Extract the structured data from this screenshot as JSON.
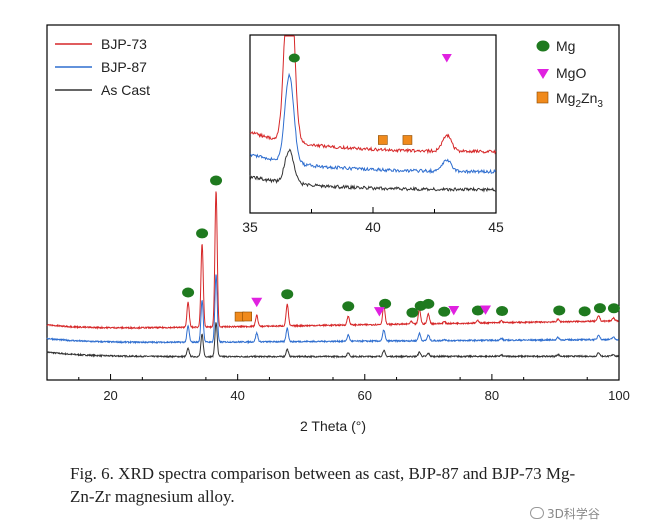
{
  "caption": {
    "line1": "Fig. 6. XRD spectra comparison between as cast, BJP-87 and BJP-73 Mg-",
    "line2": "Zn-Zr magnesium alloy."
  },
  "watermark": "3D科学谷",
  "colors": {
    "bjp73": "#d62728",
    "bjp87": "#2f6ecf",
    "ascast": "#333333",
    "mg_marker": "#1f7a1f",
    "mgo_marker": "#e021e0",
    "mg2zn3_marker": "#f08a1c"
  },
  "chart_data": {
    "type": "line",
    "xlabel": "2 Theta (°)",
    "ylabel": "",
    "xlim": [
      10,
      100
    ],
    "x_ticks": [
      20,
      40,
      60,
      80,
      100
    ],
    "legend": {
      "placement": "top-left",
      "entries": [
        "BJP-73",
        "BJP-87",
        "As Cast"
      ]
    },
    "series": [
      {
        "name": "BJP-73",
        "color": "#d62728",
        "baseline_at_10": 6.2,
        "baseline_at_100": 7.6,
        "peaks": [
          [
            32.2,
            4.0
          ],
          [
            34.4,
            13.5
          ],
          [
            36.6,
            22.0
          ],
          [
            43.0,
            1.8
          ],
          [
            47.8,
            3.5
          ],
          [
            57.4,
            1.4
          ],
          [
            63.0,
            3.2
          ],
          [
            67.3,
            0.4
          ],
          [
            68.6,
            2.4
          ],
          [
            70.0,
            1.6
          ],
          [
            72.5,
            0.3
          ],
          [
            77.8,
            0.4
          ],
          [
            81.5,
            0.3
          ],
          [
            90.4,
            0.4
          ],
          [
            96.8,
            0.9
          ],
          [
            99.1,
            0.5
          ]
        ]
      },
      {
        "name": "BJP-87",
        "color": "#2f6ecf",
        "baseline_at_10": 4.0,
        "baseline_at_100": 4.6,
        "peaks": [
          [
            32.2,
            2.6
          ],
          [
            34.4,
            6.8
          ],
          [
            36.6,
            11.0
          ],
          [
            43.0,
            1.4
          ],
          [
            47.8,
            2.2
          ],
          [
            57.4,
            1.0
          ],
          [
            63.0,
            1.8
          ],
          [
            68.6,
            1.2
          ],
          [
            70.0,
            0.9
          ],
          [
            72.5,
            0.2
          ],
          [
            81.5,
            0.3
          ],
          [
            90.4,
            0.4
          ],
          [
            96.8,
            0.8
          ],
          [
            99.1,
            0.4
          ]
        ]
      },
      {
        "name": "As Cast",
        "color": "#333333",
        "baseline_at_10": 1.8,
        "baseline_at_100": 1.9,
        "peaks": [
          [
            32.2,
            1.3
          ],
          [
            34.4,
            3.6
          ],
          [
            36.6,
            5.5
          ],
          [
            47.8,
            1.2
          ],
          [
            57.4,
            0.6
          ],
          [
            63.0,
            1.0
          ],
          [
            68.6,
            0.7
          ],
          [
            70.0,
            0.5
          ],
          [
            81.5,
            0.2
          ],
          [
            90.4,
            0.3
          ],
          [
            96.8,
            0.6
          ],
          [
            99.1,
            0.3
          ]
        ]
      }
    ],
    "phase_markers": {
      "Mg": [
        32.2,
        34.4,
        36.6,
        47.8,
        57.4,
        63.2,
        67.5,
        68.8,
        70.0,
        72.5,
        77.8,
        81.6,
        90.6,
        94.6,
        97.0,
        99.2
      ],
      "MgO": [
        43.0,
        62.3,
        74.0,
        79.0
      ],
      "Mg2Zn3": [
        40.3,
        41.5
      ]
    },
    "phase_legend": [
      {
        "label": "Mg",
        "marker": "circle"
      },
      {
        "label": "MgO",
        "marker": "triangle-down"
      },
      {
        "label": "Mg",
        "sub1": "2",
        "label2": "Zn",
        "sub2": "3",
        "marker": "square"
      }
    ],
    "inset": {
      "xlim": [
        35,
        45
      ],
      "x_ticks": [
        35,
        40,
        45
      ],
      "phase_markers": {
        "Mg": [
          36.8
        ],
        "MgO": [
          43.0
        ],
        "Mg2Zn3": [
          40.4,
          41.4
        ]
      }
    }
  }
}
